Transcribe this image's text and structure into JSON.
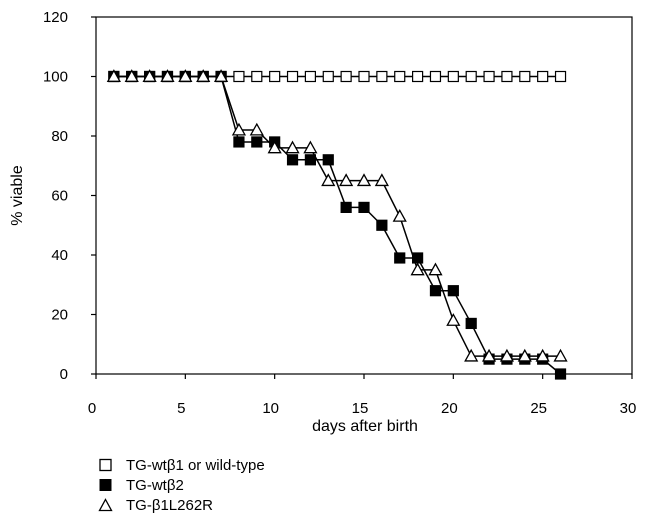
{
  "chart_data": {
    "type": "line",
    "xlabel": "days after birth",
    "ylabel": "% viable",
    "xlim": [
      0,
      30
    ],
    "ylim": [
      0,
      120
    ],
    "xticks": [
      0,
      5,
      10,
      15,
      20,
      25,
      30
    ],
    "yticks": [
      0,
      20,
      40,
      60,
      80,
      100,
      120
    ],
    "grid": false,
    "legend_position": "bottom-left",
    "series": [
      {
        "name": "TG-wtβ1 or wild-type",
        "marker": "open-square",
        "color": "#000000",
        "x": [
          1,
          2,
          3,
          4,
          5,
          6,
          7,
          8,
          9,
          10,
          11,
          12,
          13,
          14,
          15,
          16,
          17,
          18,
          19,
          20,
          21,
          22,
          23,
          24,
          25,
          26
        ],
        "y": [
          100,
          100,
          100,
          100,
          100,
          100,
          100,
          100,
          100,
          100,
          100,
          100,
          100,
          100,
          100,
          100,
          100,
          100,
          100,
          100,
          100,
          100,
          100,
          100,
          100,
          100
        ]
      },
      {
        "name": "TG-wtβ2",
        "marker": "filled-square",
        "color": "#000000",
        "x": [
          1,
          2,
          3,
          4,
          5,
          6,
          7,
          8,
          9,
          10,
          11,
          12,
          13,
          14,
          15,
          16,
          17,
          18,
          19,
          20,
          21,
          22,
          23,
          24,
          25,
          26
        ],
        "y": [
          100,
          100,
          100,
          100,
          100,
          100,
          100,
          78,
          78,
          78,
          72,
          72,
          72,
          56,
          56,
          50,
          39,
          39,
          28,
          28,
          17,
          5,
          5,
          5,
          5,
          0
        ]
      },
      {
        "name": "TG-β1L262R",
        "marker": "open-triangle",
        "color": "#000000",
        "x": [
          1,
          2,
          3,
          4,
          5,
          6,
          7,
          8,
          9,
          10,
          11,
          12,
          13,
          14,
          15,
          16,
          17,
          18,
          19,
          20,
          21,
          22,
          23,
          24,
          25,
          26
        ],
        "y": [
          100,
          100,
          100,
          100,
          100,
          100,
          100,
          82,
          82,
          76,
          76,
          76,
          65,
          65,
          65,
          65,
          53,
          35,
          35,
          18,
          6,
          6,
          6,
          6,
          6,
          6
        ]
      }
    ]
  }
}
